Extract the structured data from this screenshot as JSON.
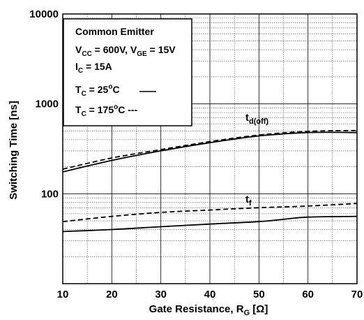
{
  "chart_data": {
    "type": "line",
    "xlabel": "Gate Resistance, R",
    "xlabel_sub": "G",
    "xlabel_unit": " [Ω]",
    "ylabel": "Switching Time [ns]",
    "xlim": [
      10,
      70
    ],
    "ylim": [
      10,
      10000
    ],
    "yscale": "log",
    "grid": true,
    "x_ticks": [
      10,
      20,
      30,
      40,
      50,
      60,
      70
    ],
    "y_ticks": [
      {
        "value": 100,
        "label": "100"
      },
      {
        "value": 1000,
        "label": "1000"
      },
      {
        "value": 10000,
        "label": "10000"
      }
    ],
    "legend": {
      "placement": "top-left",
      "line1": "Common Emitter",
      "line2": {
        "v1": "V",
        "s1": "CC",
        "t1": " = 600V, V",
        "s2": "GE",
        "t2": " = 15V"
      },
      "line3": {
        "a": "I",
        "s": "C",
        "b": " = 15A"
      },
      "line4": {
        "a": "T",
        "s": "C",
        "b": " = 25",
        "sup": "o",
        "c": "C"
      },
      "line5": {
        "a": "T",
        "s": "C",
        "b": " = 175",
        "sup": "o",
        "c": "C ---"
      }
    },
    "annotations": [
      {
        "base": "t",
        "sub": "d(off)"
      },
      {
        "base": "t",
        "sub": "f"
      }
    ],
    "series": [
      {
        "curve": "td(off)",
        "condition": "25°C",
        "style": "solid",
        "x": [
          10,
          20,
          30,
          40,
          50,
          60,
          70
        ],
        "y": [
          175,
          235,
          300,
          370,
          440,
          480,
          480
        ]
      },
      {
        "curve": "td(off)",
        "condition": "175°C",
        "style": "dashed",
        "x": [
          10,
          20,
          30,
          40,
          50,
          60,
          70
        ],
        "y": [
          188,
          250,
          310,
          380,
          450,
          495,
          505
        ]
      },
      {
        "curve": "tf",
        "condition": "25°C",
        "style": "solid",
        "x": [
          10,
          20,
          30,
          40,
          50,
          55,
          60,
          70
        ],
        "y": [
          38,
          40,
          43,
          46,
          49,
          52,
          55,
          56
        ]
      },
      {
        "curve": "tf",
        "condition": "175°C",
        "style": "dashed",
        "x": [
          10,
          20,
          30,
          40,
          50,
          60,
          70
        ],
        "y": [
          49,
          56,
          62,
          66,
          70,
          73,
          78
        ]
      }
    ]
  }
}
